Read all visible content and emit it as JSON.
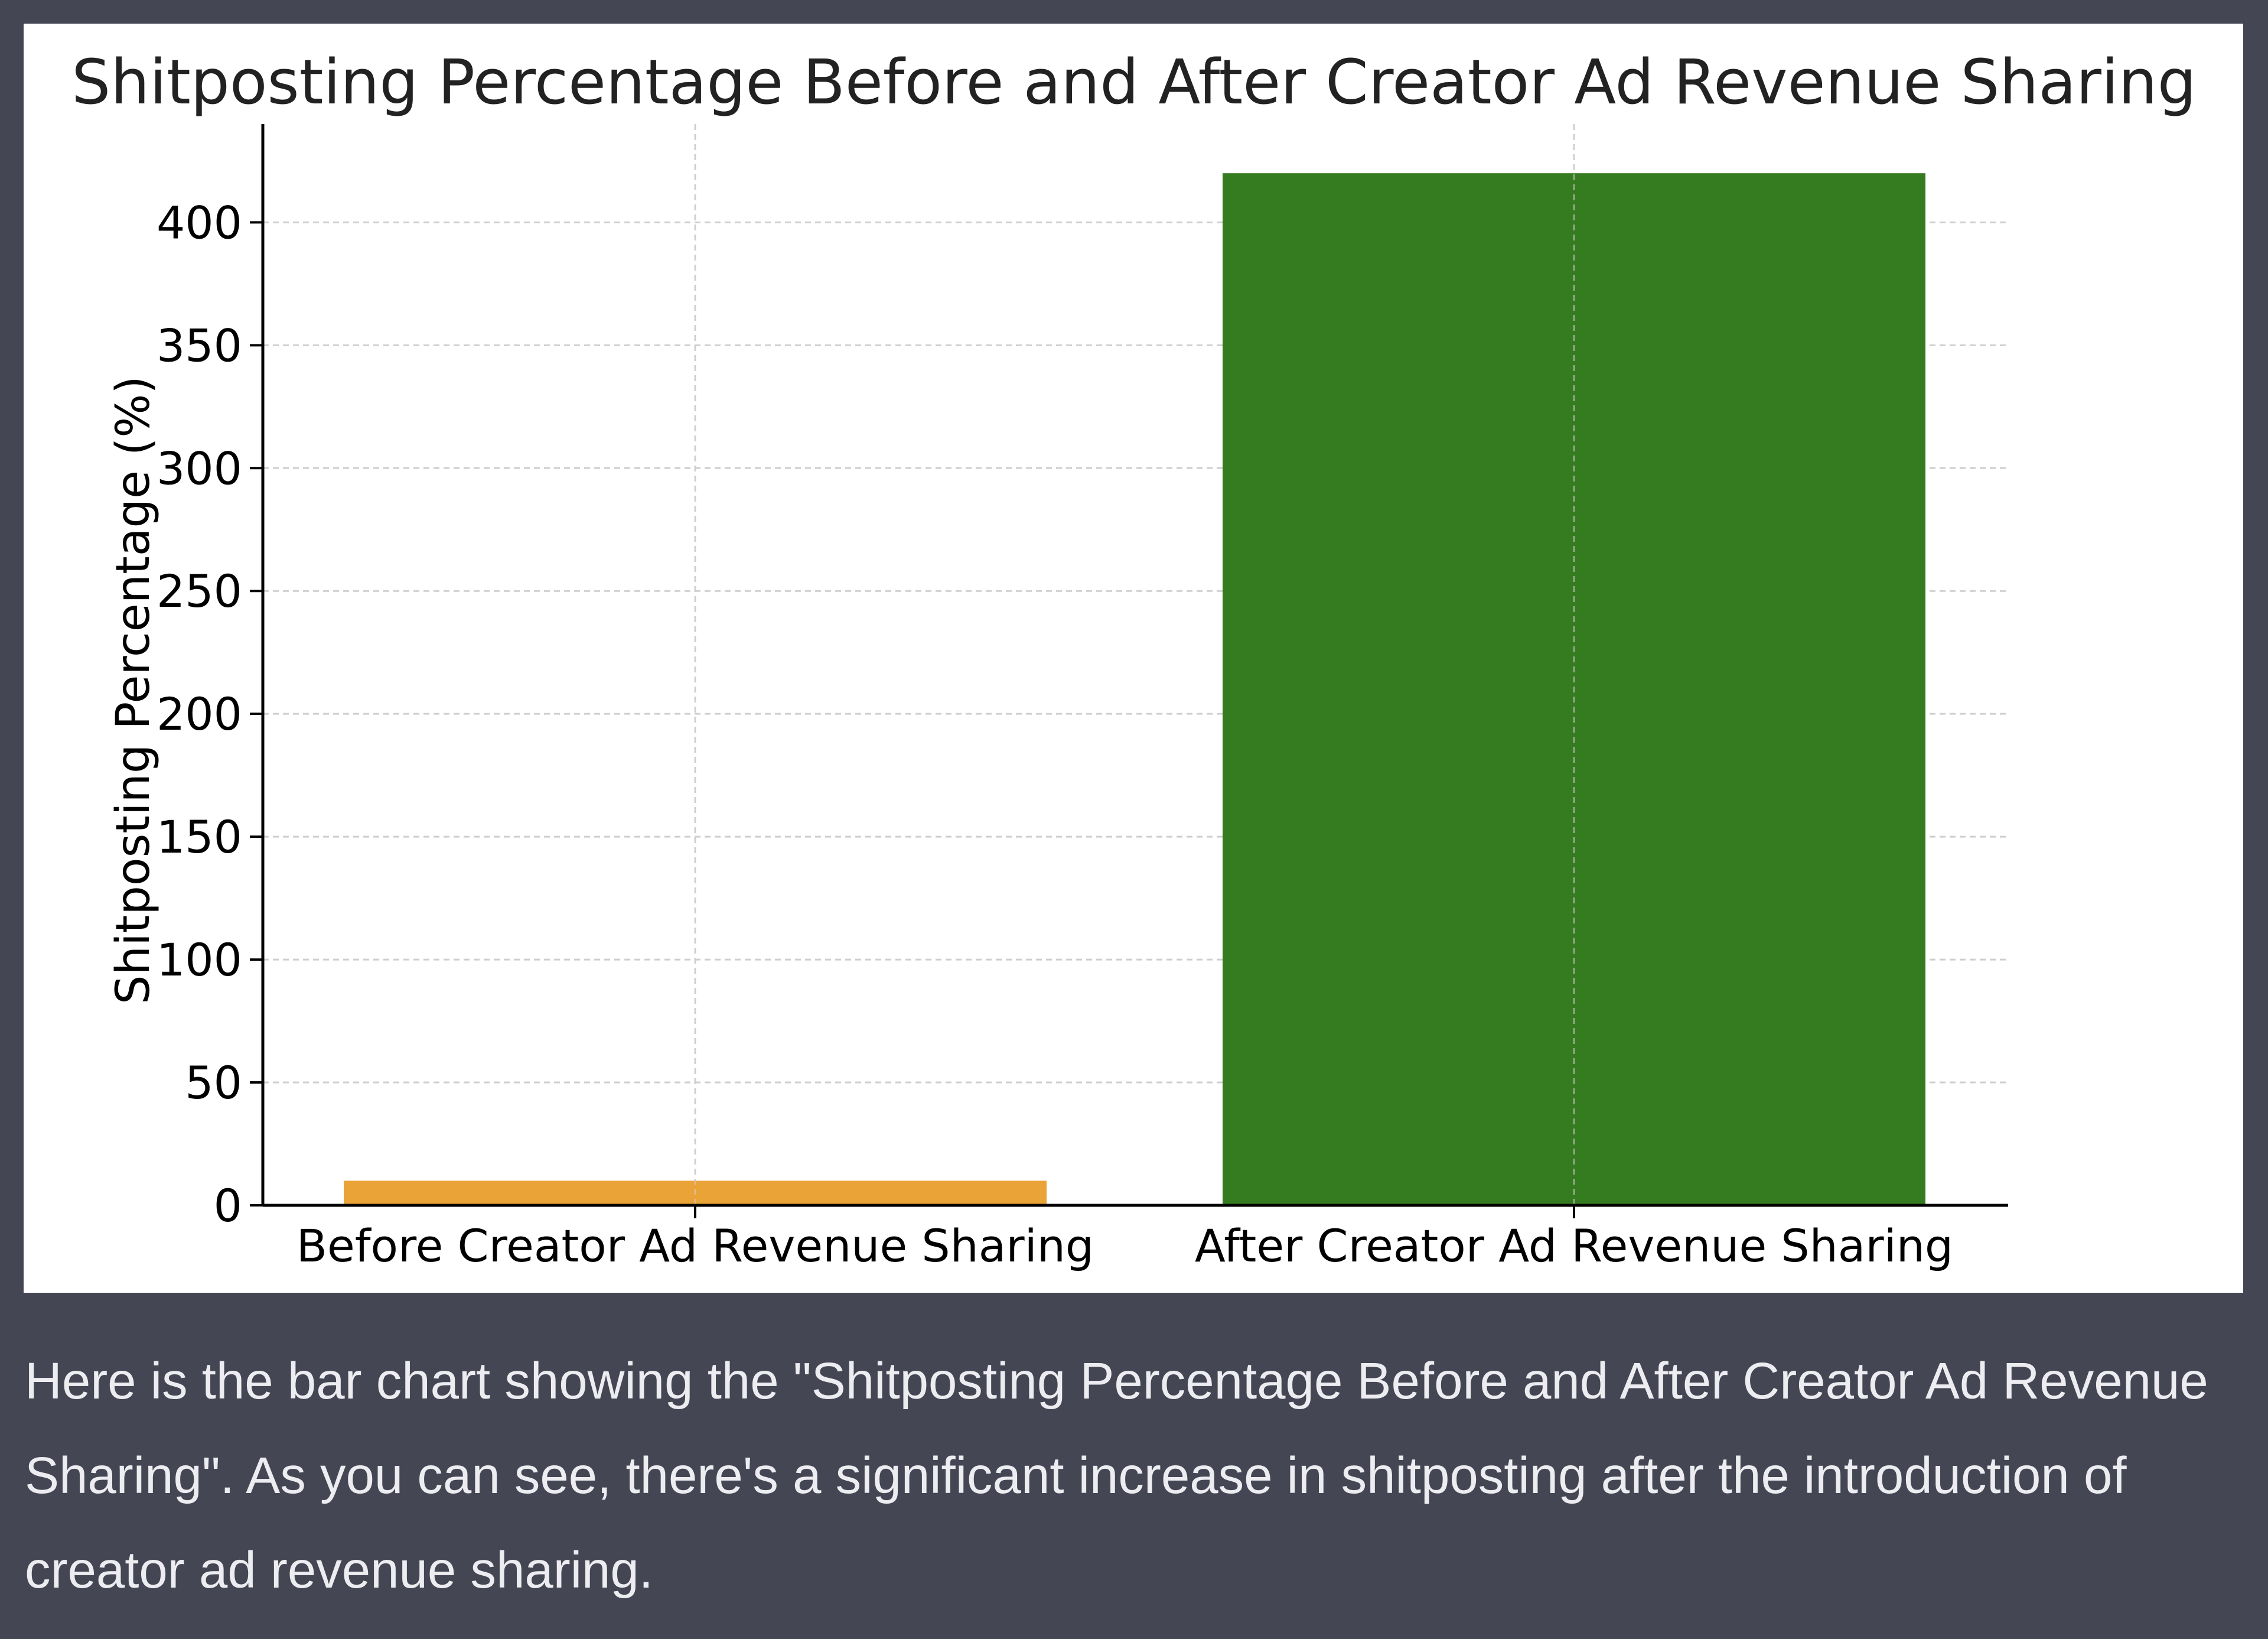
{
  "message": {
    "text": "Here is the bar chart showing the \"Shitposting Percentage Before and After Creator Ad Revenue Sharing\". As you can see, there's a significant increase in shitposting after the introduction of creator ad revenue sharing."
  },
  "colors": {
    "page_background": "#444654",
    "card_background": "#ffffff",
    "message_text": "#ececf1",
    "grid": "#cfcfcf",
    "axis": "#000000"
  },
  "chart_data": {
    "type": "bar",
    "title": "Shitposting Percentage Before and After Creator Ad Revenue Sharing",
    "xlabel": "",
    "ylabel": "Shitposting Percentage (%)",
    "categories": [
      "Before Creator Ad Revenue Sharing",
      "After Creator Ad Revenue Sharing"
    ],
    "values": [
      10,
      420
    ],
    "bar_colors": [
      "#eaa336",
      "#357b20"
    ],
    "ylim": [
      0,
      440
    ],
    "yticks": [
      0,
      50,
      100,
      150,
      200,
      250,
      300,
      350,
      400
    ],
    "grid": true,
    "grid_style": "dashed",
    "legend": false
  }
}
